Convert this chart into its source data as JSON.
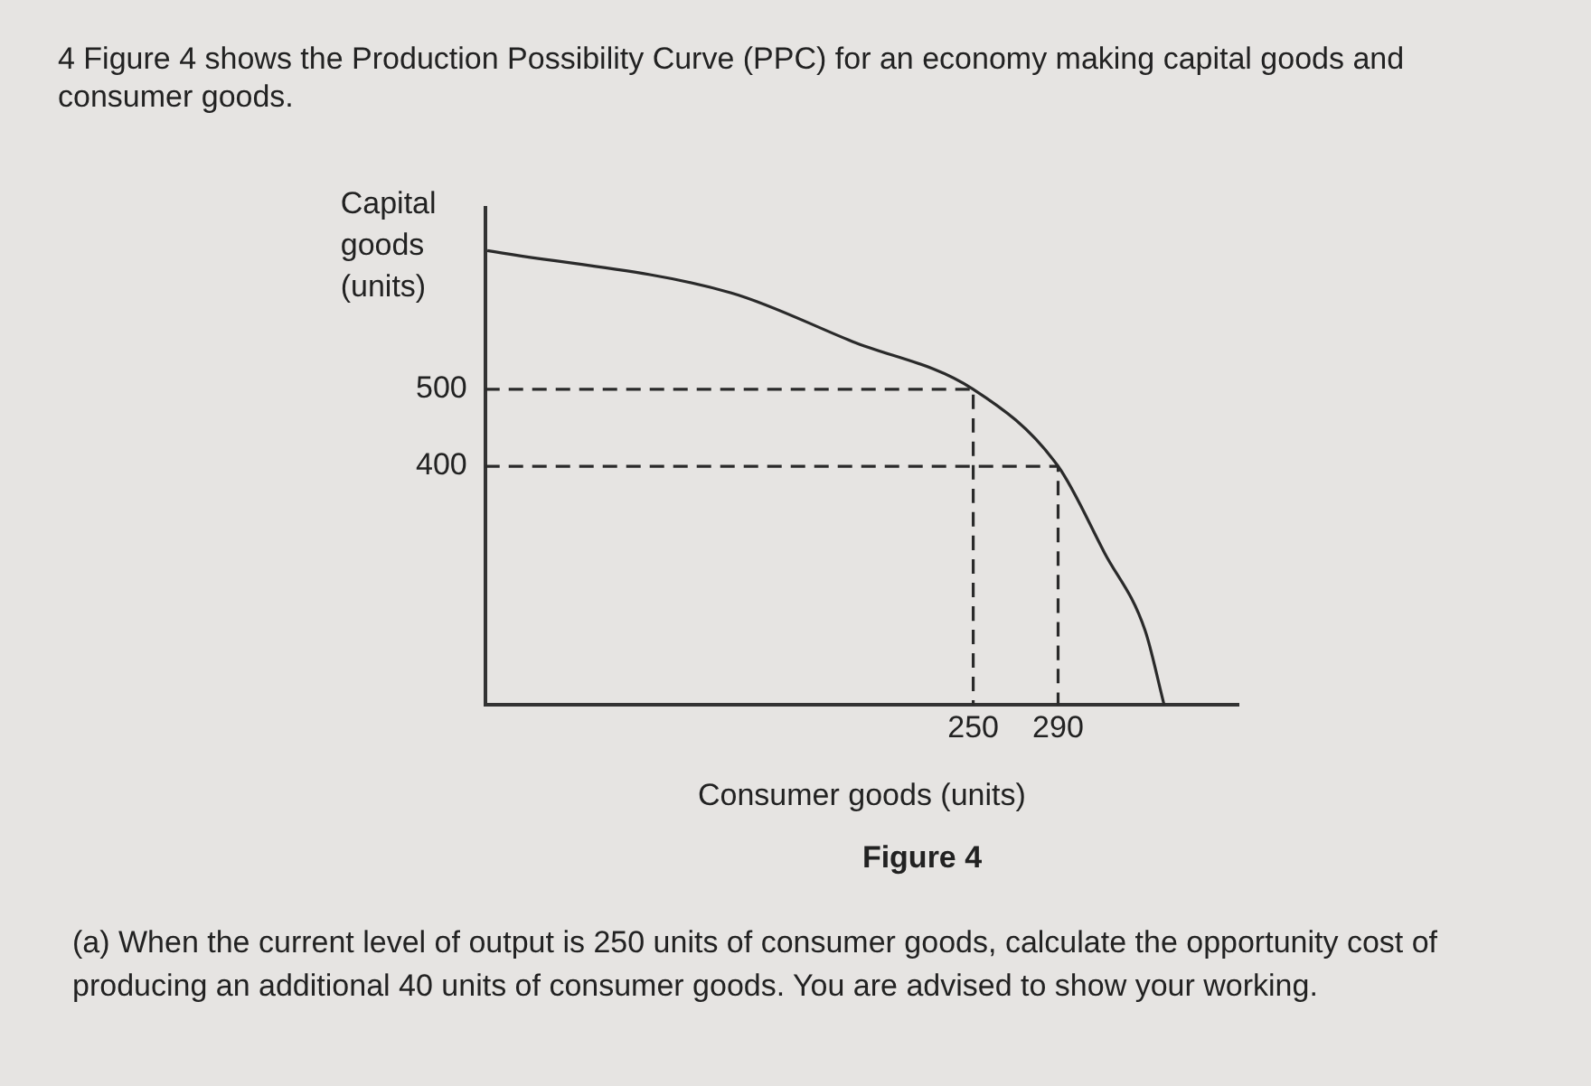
{
  "chart_data": {
    "type": "line",
    "title": "4 Figure 4 shows the Production Possibility Curve (PPC) for an economy making capital goods and consumer goods.",
    "xlabel": "Consumer goods (units)",
    "ylabel": "Capital goods (units)",
    "xlim": [
      20,
      375
    ],
    "ylim": [
      90,
      735
    ],
    "xticks": [
      250,
      290
    ],
    "yticks": [
      400,
      500
    ],
    "series": [
      {
        "type": "line",
        "color": "#2a2a2a",
        "line_style": "solid",
        "x": [
          21,
          136,
          193,
          250,
          290,
          312,
          331,
          340
        ],
        "values": [
          680,
          625,
          562,
          500,
          400,
          287,
          187,
          90
        ]
      },
      {
        "type": "line",
        "color": "#2a2a2a",
        "line_style": "dashed",
        "x": [
          20,
          250,
          250
        ],
        "values": [
          500,
          500,
          90
        ]
      },
      {
        "type": "line",
        "color": "#2a2a2a",
        "line_style": "dashed",
        "x": [
          20,
          290,
          290
        ],
        "values": [
          400,
          400,
          90
        ]
      }
    ],
    "grid": false,
    "legend": false,
    "marker": "none",
    "annotations": [
      "Figure 4",
      "(a) When the current level of output is 250 units of consumer goods, calculate the opportunity cost of producing an additional 40 units of consumer goods. You are advised to show your working."
    ]
  }
}
